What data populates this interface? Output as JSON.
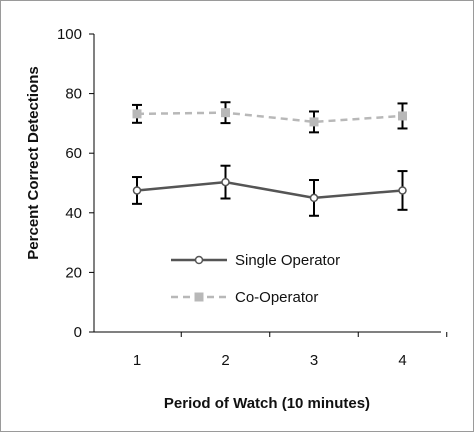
{
  "chart_data": {
    "type": "line",
    "title": "",
    "xlabel": "Period of Watch (10 minutes)",
    "ylabel": "Percent Correct Detections",
    "categories": [
      "1",
      "2",
      "3",
      "4"
    ],
    "ylim": [
      0,
      100
    ],
    "yticks": [
      "0",
      "20",
      "40",
      "60",
      "80",
      "100"
    ],
    "grid": false,
    "legend_position": "center-left",
    "series": [
      {
        "name": "Single Operator",
        "values": [
          47.5,
          50.3,
          45.0,
          47.5
        ],
        "error": [
          4.5,
          5.5,
          6.0,
          6.5
        ],
        "color": "#555555",
        "line_style": "solid",
        "marker": "circle"
      },
      {
        "name": "Co-Operator",
        "values": [
          73.2,
          73.6,
          70.5,
          72.5
        ],
        "error": [
          3.0,
          3.5,
          3.5,
          4.2
        ],
        "color": "#b8b8b8",
        "line_style": "dashed",
        "marker": "square"
      }
    ]
  }
}
